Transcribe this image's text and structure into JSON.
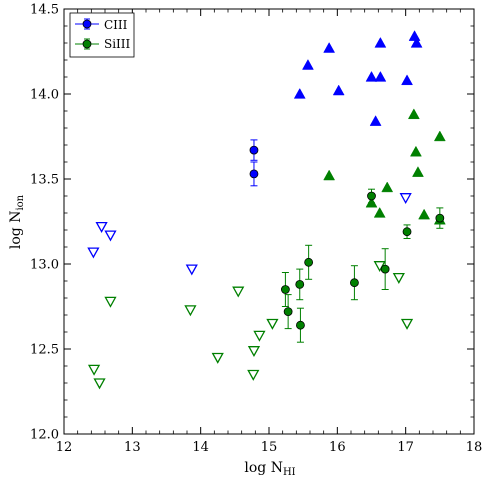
{
  "chart_data": {
    "type": "scatter",
    "xlabel": {
      "base": "log N",
      "sub": "HI"
    },
    "ylabel": {
      "base": "log N",
      "sub": "ion"
    },
    "xlim": [
      12,
      18
    ],
    "ylim": [
      12.0,
      14.5
    ],
    "xticks": [
      "12",
      "13",
      "14",
      "15",
      "16",
      "17",
      "18"
    ],
    "yticks": [
      "12.0",
      "12.5",
      "13.0",
      "13.5",
      "14.0",
      "14.5"
    ],
    "legend": {
      "placement": "top-left",
      "entries": [
        "CIII",
        "SiIII"
      ]
    },
    "series": [
      {
        "name": "CIII",
        "color": "#0000ff",
        "detections": [
          {
            "x": 14.78,
            "y": 13.67,
            "err": 0.06
          },
          {
            "x": 14.78,
            "y": 13.53,
            "err": 0.07
          }
        ],
        "lower_limits": [
          {
            "x": 15.45,
            "y": 14.0
          },
          {
            "x": 15.57,
            "y": 14.17
          },
          {
            "x": 15.88,
            "y": 14.27
          },
          {
            "x": 16.02,
            "y": 14.02
          },
          {
            "x": 16.5,
            "y": 14.1
          },
          {
            "x": 16.63,
            "y": 14.1
          },
          {
            "x": 16.63,
            "y": 14.3
          },
          {
            "x": 16.56,
            "y": 13.84
          },
          {
            "x": 17.02,
            "y": 14.08
          },
          {
            "x": 17.13,
            "y": 14.34
          },
          {
            "x": 17.16,
            "y": 14.3
          }
        ],
        "upper_limits": [
          {
            "x": 12.55,
            "y": 13.22
          },
          {
            "x": 12.68,
            "y": 13.17
          },
          {
            "x": 12.43,
            "y": 13.07
          },
          {
            "x": 13.87,
            "y": 12.97
          },
          {
            "x": 17.0,
            "y": 13.39
          }
        ]
      },
      {
        "name": "SiIII",
        "color": "#008000",
        "detections": [
          {
            "x": 16.5,
            "y": 13.4,
            "err": 0.04
          },
          {
            "x": 17.02,
            "y": 13.19,
            "err": 0.04
          },
          {
            "x": 17.5,
            "y": 13.27,
            "err": 0.06
          },
          {
            "x": 15.24,
            "y": 12.85,
            "err": 0.1
          },
          {
            "x": 15.28,
            "y": 12.72,
            "err": 0.1
          },
          {
            "x": 15.45,
            "y": 12.88,
            "err": 0.09
          },
          {
            "x": 15.46,
            "y": 12.64,
            "err": 0.1
          },
          {
            "x": 15.58,
            "y": 13.01,
            "err": 0.1
          },
          {
            "x": 16.25,
            "y": 12.89,
            "err": 0.1
          },
          {
            "x": 16.7,
            "y": 12.97,
            "err": 0.12
          }
        ],
        "lower_limits": [
          {
            "x": 15.88,
            "y": 13.52
          },
          {
            "x": 16.5,
            "y": 13.36
          },
          {
            "x": 16.62,
            "y": 13.3
          },
          {
            "x": 16.73,
            "y": 13.45
          },
          {
            "x": 17.12,
            "y": 13.88
          },
          {
            "x": 17.15,
            "y": 13.66
          },
          {
            "x": 17.18,
            "y": 13.54
          },
          {
            "x": 17.27,
            "y": 13.29
          },
          {
            "x": 17.5,
            "y": 13.75
          },
          {
            "x": 17.5,
            "y": 13.26
          }
        ],
        "upper_limits": [
          {
            "x": 12.44,
            "y": 12.38
          },
          {
            "x": 12.52,
            "y": 12.3
          },
          {
            "x": 12.68,
            "y": 12.78
          },
          {
            "x": 13.85,
            "y": 12.73
          },
          {
            "x": 14.25,
            "y": 12.45
          },
          {
            "x": 14.55,
            "y": 12.84
          },
          {
            "x": 14.77,
            "y": 12.35
          },
          {
            "x": 14.78,
            "y": 12.49
          },
          {
            "x": 14.86,
            "y": 12.58
          },
          {
            "x": 15.05,
            "y": 12.65
          },
          {
            "x": 16.62,
            "y": 12.99
          },
          {
            "x": 16.9,
            "y": 12.92
          },
          {
            "x": 17.02,
            "y": 12.65
          }
        ]
      }
    ]
  }
}
